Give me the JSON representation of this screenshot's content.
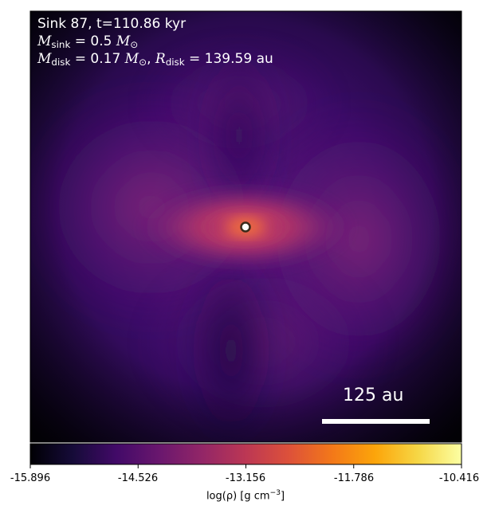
{
  "annotation": {
    "line1": "Sink 87, t=110.86 kyr",
    "sink_symbol": "M",
    "sink_sub": "sink",
    "sink_value": "= 0.5",
    "sun_symbol": "M",
    "sun_sub": "⊙",
    "disk_symbol": "M",
    "disk_sub": "disk",
    "disk_value": "= 0.17",
    "disk_sep": ",",
    "radius_symbol": "R",
    "radius_sub": "disk",
    "radius_value": "= 139.59 au"
  },
  "scale_bar": {
    "label": "125 au"
  },
  "colorbar": {
    "colormap": "inferno",
    "ticks": [
      "-15.896",
      "-14.526",
      "-13.156",
      "-11.786",
      "-10.416"
    ],
    "label_main": "log(ρ) [g cm",
    "label_exp": "−3",
    "label_close": "]"
  },
  "colors": {
    "background": "#ffffff",
    "bar": "#ffffff",
    "sink_marker_fill": "#ffffff",
    "sink_marker_edge": "#3a2a1a"
  }
}
